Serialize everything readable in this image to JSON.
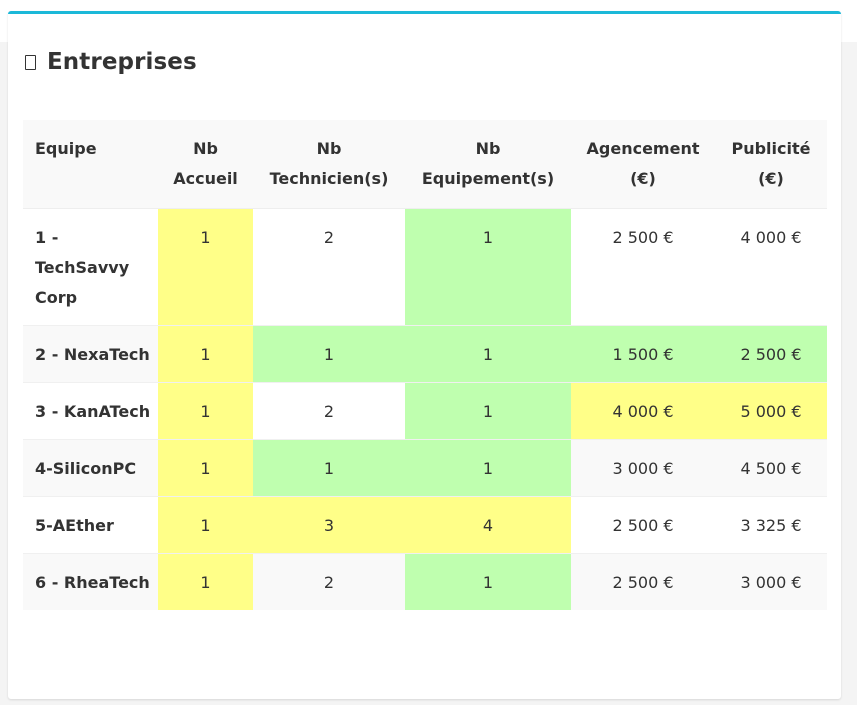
{
  "card": {
    "title": "Entreprises",
    "title_icon": "square-outline-icon",
    "accent_color": "#1bb8d8"
  },
  "table": {
    "headers": [
      "Equipe",
      "Nb Accueil",
      "Nb Technicien(s)",
      "Nb Equipement(s)",
      "Agencement (€)",
      "Publicité (€)"
    ],
    "highlight_colors": {
      "yellow": "#ffff88",
      "green": "#bfffaf"
    },
    "rows": [
      {
        "equipe": "1 - TechSavvy Corp",
        "accueil": "1",
        "techniciens": "2",
        "equipements": "1",
        "agencement": "2 500 €",
        "publicite": "4 000 €",
        "colors": [
          "yellow",
          "",
          "green",
          "",
          ""
        ]
      },
      {
        "equipe": "2 - NexaTech",
        "accueil": "1",
        "techniciens": "1",
        "equipements": "1",
        "agencement": "1 500 €",
        "publicite": "2 500 €",
        "colors": [
          "yellow",
          "green",
          "green",
          "green",
          "green"
        ]
      },
      {
        "equipe": "3 - KanATech",
        "accueil": "1",
        "techniciens": "2",
        "equipements": "1",
        "agencement": "4 000 €",
        "publicite": "5 000 €",
        "colors": [
          "yellow",
          "",
          "green",
          "yellow",
          "yellow"
        ]
      },
      {
        "equipe": "4-SiliconPC",
        "accueil": "1",
        "techniciens": "1",
        "equipements": "1",
        "agencement": "3 000 €",
        "publicite": "4 500 €",
        "colors": [
          "yellow",
          "green",
          "green",
          "",
          ""
        ]
      },
      {
        "equipe": "5-AEther",
        "accueil": "1",
        "techniciens": "3",
        "equipements": "4",
        "agencement": "2 500 €",
        "publicite": "3 325 €",
        "colors": [
          "yellow",
          "yellow",
          "yellow",
          "",
          ""
        ]
      },
      {
        "equipe": "6 - RheaTech",
        "accueil": "1",
        "techniciens": "2",
        "equipements": "1",
        "agencement": "2 500 €",
        "publicite": "3 000 €",
        "colors": [
          "yellow",
          "",
          "green",
          "",
          ""
        ]
      }
    ]
  }
}
